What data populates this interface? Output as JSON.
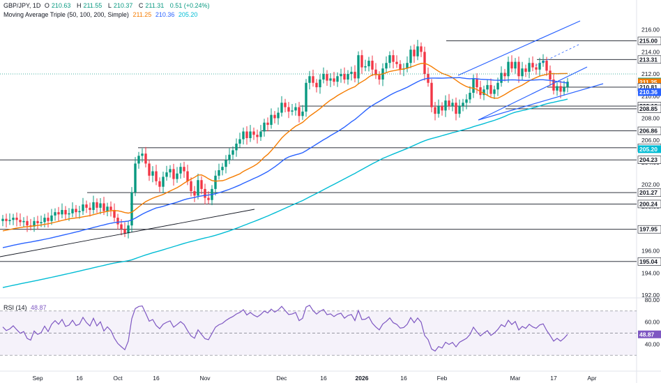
{
  "legend": {
    "symbol": "GBP/JPY, 1D",
    "o_label": "O",
    "o_value": "210.63",
    "h_label": "H",
    "h_value": "211.55",
    "l_label": "L",
    "l_value": "210.37",
    "c_label": "C",
    "c_value": "211.31",
    "change": "0.51 (+0.24%)",
    "ma_label": "Moving Average Triple (50, 100, 200, Simple)",
    "ma50": "211.25",
    "ma100": "210.36",
    "ma200": "205.20",
    "rsi_label": "RSI (14)",
    "rsi_value": "48.87"
  },
  "colors": {
    "up": "#089981",
    "down": "#f23645",
    "ma50": "#f57c00",
    "ma100": "#2962ff",
    "ma200": "#00bcd4",
    "rsi": "#7e57c2",
    "level": "#131722"
  },
  "chart_data": {
    "type": "candlestick",
    "x_ticks": [
      "Sep",
      "16",
      "Oct",
      "16",
      "Nov",
      "Dec",
      "16",
      "2026",
      "16",
      "Feb",
      "Mar",
      "17",
      "Apr"
    ],
    "y_ticks": [
      "216.00",
      "214.00",
      "212.00",
      "210.00",
      "208.00",
      "206.00",
      "204.00",
      "202.00",
      "200.00",
      "198.00",
      "196.00",
      "194.00",
      "192.00"
    ],
    "ylim": [
      192.0,
      216.8
    ],
    "horizontal_levels": [
      215.0,
      213.31,
      210.81,
      209.1,
      208.85,
      206.86,
      205.33,
      204.23,
      201.27,
      200.24,
      197.95,
      195.04
    ],
    "price_tags": [
      {
        "label": "215.00",
        "value": 215.0,
        "kind": "level"
      },
      {
        "label": "213.31",
        "value": 213.31,
        "kind": "level"
      },
      {
        "label": "211.31",
        "value": 211.31,
        "kind": "price"
      },
      {
        "label": "211.25",
        "value": 211.25,
        "kind": "ma50"
      },
      {
        "label": "210.81",
        "value": 210.81,
        "kind": "level"
      },
      {
        "label": "210.36",
        "value": 210.36,
        "kind": "ma100"
      },
      {
        "label": "209.10",
        "value": 209.1,
        "kind": "level"
      },
      {
        "label": "208.85",
        "value": 208.85,
        "kind": "level"
      },
      {
        "label": "206.86",
        "value": 206.86,
        "kind": "level"
      },
      {
        "label": "205.33",
        "value": 205.33,
        "kind": "level"
      },
      {
        "label": "205.20",
        "value": 205.2,
        "kind": "ma200"
      },
      {
        "label": "204.23",
        "value": 204.23,
        "kind": "level"
      },
      {
        "label": "201.27",
        "value": 201.27,
        "kind": "level"
      },
      {
        "label": "200.24",
        "value": 200.24,
        "kind": "level"
      },
      {
        "label": "197.95",
        "value": 197.95,
        "kind": "level"
      },
      {
        "label": "195.04",
        "value": 195.04,
        "kind": "level"
      }
    ],
    "closes": [
      198.9,
      198.7,
      198.8,
      199.0,
      198.8,
      198.6,
      198.7,
      198.3,
      198.2,
      198.7,
      198.5,
      198.6,
      199.0,
      198.7,
      199.2,
      199.5,
      199.3,
      199.7,
      199.3,
      199.4,
      199.8,
      199.5,
      199.6,
      200.2,
      199.9,
      199.7,
      200.4,
      199.9,
      200.3,
      199.6,
      200.0,
      199.7,
      199.0,
      198.4,
      198.0,
      197.6,
      198.3,
      201.3,
      203.9,
      204.6,
      204.8,
      203.9,
      202.8,
      203.2,
      202.3,
      201.8,
      202.7,
      203.1,
      203.4,
      202.5,
      203.0,
      203.6,
      203.2,
      202.3,
      201.4,
      201.0,
      202.4,
      201.6,
      200.8,
      200.6,
      201.6,
      202.8,
      203.3,
      203.6,
      204.2,
      204.7,
      205.1,
      205.7,
      206.1,
      206.8,
      206.2,
      206.8,
      206.5,
      206.3,
      206.8,
      207.6,
      207.4,
      208.3,
      208.0,
      208.5,
      209.4,
      209.0,
      208.6,
      208.7,
      209.0,
      208.2,
      208.6,
      211.2,
      211.8,
      211.2,
      210.8,
      211.5,
      212.0,
      211.4,
      211.6,
      211.3,
      211.8,
      212.0,
      211.5,
      212.0,
      212.2,
      211.6,
      213.7,
      212.6,
      212.7,
      213.2,
      212.4,
      211.9,
      211.5,
      212.5,
      213.0,
      213.7,
      213.1,
      212.9,
      212.4,
      212.5,
      213.0,
      214.2,
      213.6,
      214.5,
      214.0,
      212.0,
      211.2,
      209.0,
      208.4,
      209.1,
      208.7,
      209.6,
      209.1,
      209.4,
      208.4,
      209.1,
      209.4,
      209.7,
      210.3,
      211.6,
      210.8,
      210.1,
      210.6,
      211.0,
      210.2,
      210.6,
      211.2,
      212.1,
      211.8,
      213.1,
      212.5,
      213.1,
      211.8,
      212.5,
      212.2,
      213.0,
      212.6,
      212.4,
      213.0,
      213.2,
      212.3,
      211.5,
      210.5,
      210.9,
      210.4,
      210.8,
      211.3
    ],
    "rsi": {
      "ylim": [
        20,
        80
      ],
      "ticks": [
        "80.00",
        "60.00",
        "40.00"
      ],
      "levels": [
        70,
        50,
        30
      ],
      "value": 48.87
    }
  }
}
